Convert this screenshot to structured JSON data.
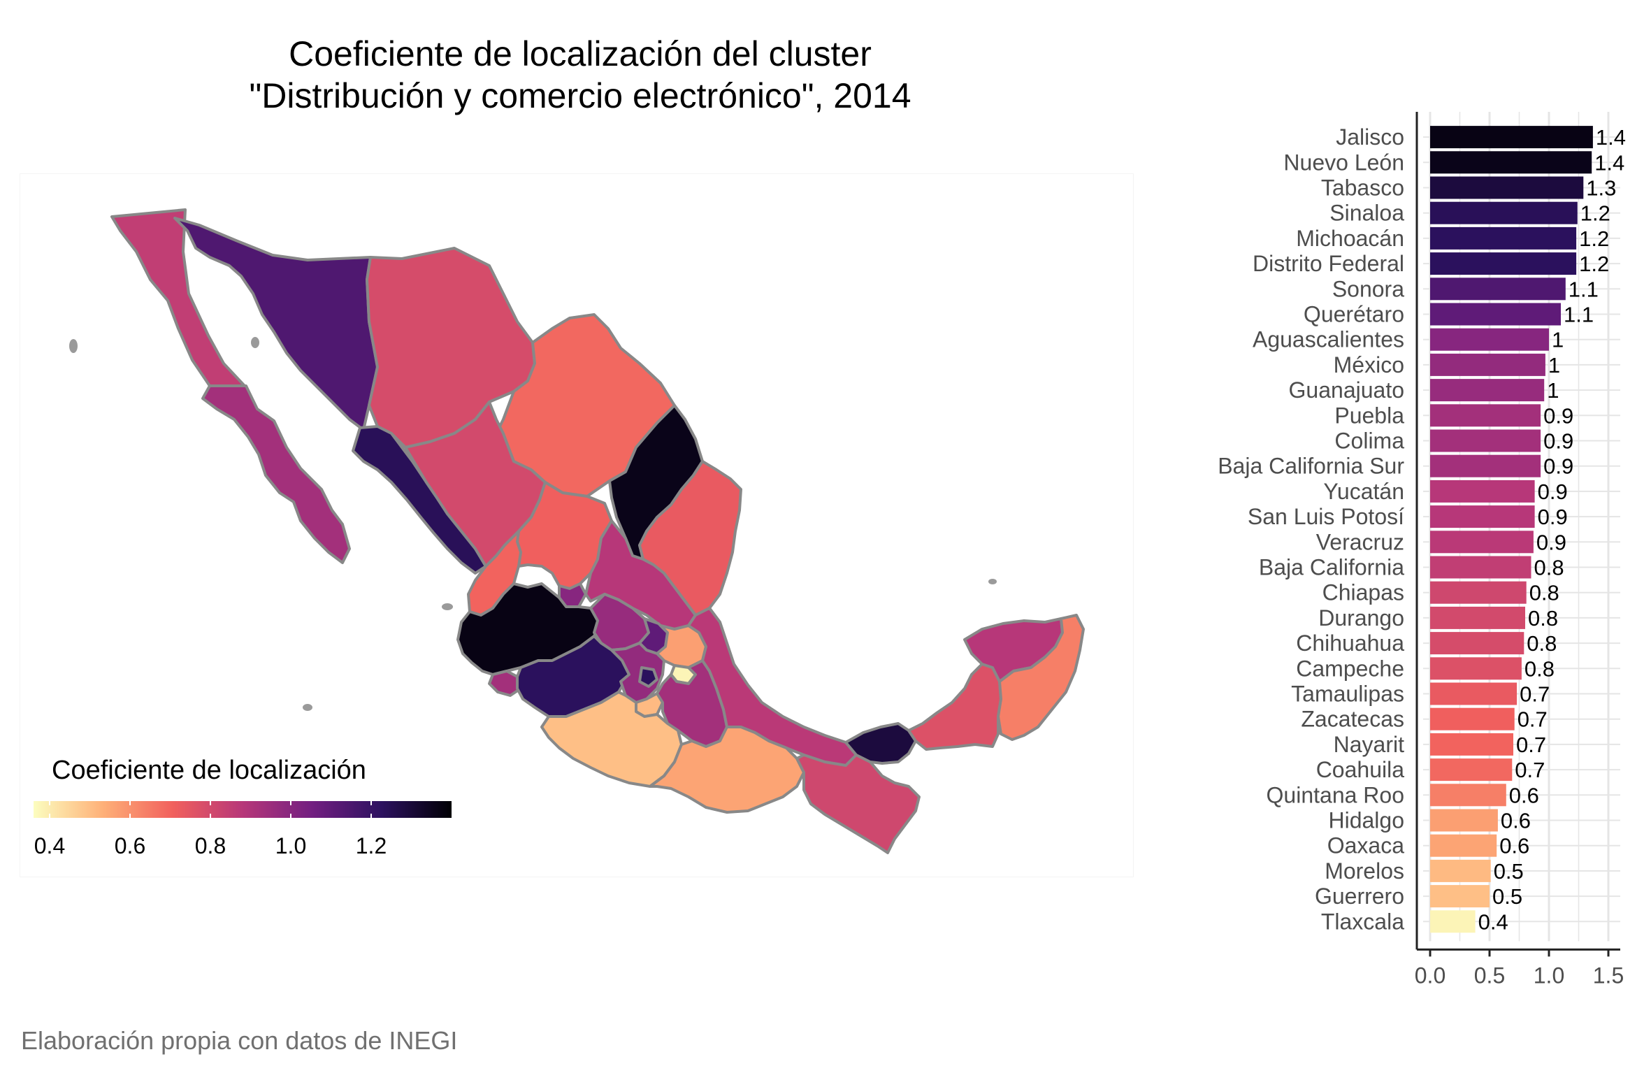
{
  "title": {
    "line1": "Coeficiente de localización del cluster",
    "line2": "\"Distribución y comercio electrónico\", 2014"
  },
  "caption": "Elaboración propia con datos de INEGI",
  "legend": {
    "title": "Coeficiente de localización",
    "ticks": [
      "0.4",
      "0.6",
      "0.8",
      "1.0",
      "1.2"
    ],
    "range": [
      0.36,
      1.4
    ]
  },
  "colors": {
    "scale": [
      "#FCFDBF",
      "#FEB078",
      "#F1605D",
      "#B73779",
      "#721F81",
      "#2C115F",
      "#000004"
    ],
    "state_border": "#888888",
    "grid": "#E5E5E5",
    "axis": "#222222"
  },
  "chart_data": [
    {
      "type": "bar",
      "orientation": "horizontal",
      "categories": [
        "Jalisco",
        "Nuevo León",
        "Tabasco",
        "Sinaloa",
        "Michoacán",
        "Distrito Federal",
        "Sonora",
        "Querétaro",
        "Aguascalientes",
        "México",
        "Guanajuato",
        "Puebla",
        "Colima",
        "Baja California Sur",
        "Yucatán",
        "San Luis Potosí",
        "Veracruz",
        "Baja California",
        "Chiapas",
        "Durango",
        "Chihuahua",
        "Campeche",
        "Tamaulipas",
        "Zacatecas",
        "Nayarit",
        "Coahuila",
        "Quintana Roo",
        "Hidalgo",
        "Oaxaca",
        "Morelos",
        "Guerrero",
        "Tlaxcala"
      ],
      "values": [
        1.37,
        1.36,
        1.29,
        1.24,
        1.23,
        1.23,
        1.14,
        1.1,
        1.0,
        0.97,
        0.96,
        0.93,
        0.93,
        0.93,
        0.88,
        0.88,
        0.87,
        0.85,
        0.81,
        0.8,
        0.79,
        0.77,
        0.73,
        0.71,
        0.7,
        0.69,
        0.64,
        0.57,
        0.56,
        0.51,
        0.5,
        0.38
      ],
      "labels": [
        "1.4",
        "1.4",
        "1.3",
        "1.2",
        "1.2",
        "1.2",
        "1.1",
        "1.1",
        "1",
        "1",
        "1",
        "0.9",
        "0.9",
        "0.9",
        "0.9",
        "0.9",
        "0.9",
        "0.8",
        "0.8",
        "0.8",
        "0.8",
        "0.8",
        "0.7",
        "0.7",
        "0.7",
        "0.7",
        "0.6",
        "0.6",
        "0.6",
        "0.5",
        "0.5",
        "0.4"
      ],
      "x_ticks": [
        "0.0",
        "0.5",
        "1.0",
        "1.5"
      ],
      "xlim": [
        0,
        1.6
      ],
      "grid": true
    },
    {
      "type": "choropleth",
      "regions": [
        "Baja California",
        "Baja California Sur",
        "Sonora",
        "Chihuahua",
        "Coahuila",
        "Nuevo León",
        "Tamaulipas",
        "Sinaloa",
        "Durango",
        "Zacatecas",
        "Nayarit",
        "Aguascalientes",
        "Jalisco",
        "San Luis Potosí",
        "Guanajuato",
        "Querétaro",
        "Hidalgo",
        "Colima",
        "Michoacán",
        "México",
        "Distrito Federal",
        "Tlaxcala",
        "Morelos",
        "Puebla",
        "Veracruz",
        "Guerrero",
        "Oaxaca",
        "Chiapas",
        "Tabasco",
        "Campeche",
        "Yucatán",
        "Quintana Roo"
      ]
    }
  ]
}
